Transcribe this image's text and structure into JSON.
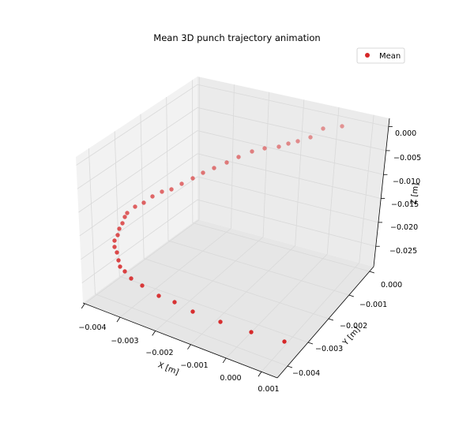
{
  "chart_data": {
    "type": "scatter",
    "title": "Mean 3D punch trajectory animation",
    "xlabel": "X [m]",
    "ylabel": "Y [m]",
    "zlabel": "Z [m]",
    "x_ticks": [
      "−0.004",
      "−0.003",
      "−0.002",
      "−0.001",
      "0.000",
      "0.001"
    ],
    "y_ticks": [
      "0.000",
      "−0.001",
      "−0.002",
      "−0.003",
      "−0.004"
    ],
    "z_ticks": [
      "0.000",
      "−0.005",
      "−0.010",
      "−0.015",
      "−0.020",
      "−0.025"
    ],
    "legend": {
      "label": "Mean",
      "placement": "top-right"
    },
    "series": [
      {
        "name": "Mean",
        "color": "#d62728",
        "points": [
          [
            433,
            160
          ],
          [
            409,
            163
          ],
          [
            393,
            174
          ],
          [
            377,
            179
          ],
          [
            365,
            182
          ],
          [
            353,
            186
          ],
          [
            335,
            188
          ],
          [
            319,
            192
          ],
          [
            302,
            199
          ],
          [
            287,
            206
          ],
          [
            271,
            213
          ],
          [
            257,
            219
          ],
          [
            244,
            226
          ],
          [
            230,
            233
          ],
          [
            217,
            240
          ],
          [
            205,
            243
          ],
          [
            193,
            249
          ],
          [
            182,
            257
          ],
          [
            171,
            262
          ],
          [
            161,
            270
          ],
          [
            158,
            275
          ],
          [
            155,
            283
          ],
          [
            151,
            290
          ],
          [
            149,
            298
          ],
          [
            145,
            305
          ],
          [
            145,
            313
          ],
          [
            148,
            320
          ],
          [
            150,
            330
          ],
          [
            152,
            338
          ],
          [
            158,
            344
          ],
          [
            166,
            353
          ],
          [
            180,
            362
          ],
          [
            201,
            375
          ],
          [
            221,
            383
          ],
          [
            244,
            395
          ],
          [
            279,
            408
          ],
          [
            318,
            421
          ],
          [
            360,
            433
          ]
        ]
      }
    ]
  }
}
